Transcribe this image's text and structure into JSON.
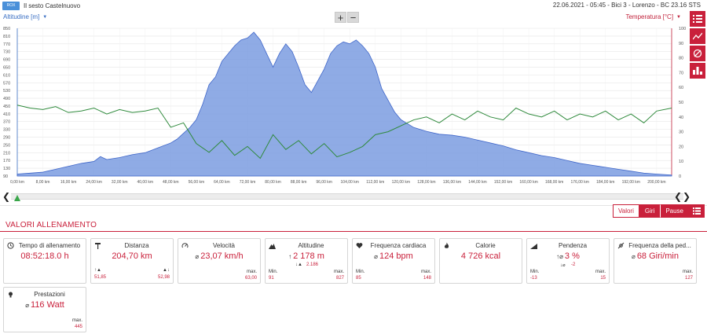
{
  "header": {
    "logo_text": "ROX",
    "title": "Il sesto Castelnuovo",
    "meta": "22.06.2021  -  05:45  -  Bici 3  -  Lorenzo  -  BC 23.16 STS"
  },
  "chart_header": {
    "left_axis": "Altitudine [m]",
    "right_axis": "Temperatura [°C]",
    "zoom_in": "+",
    "zoom_out": "−"
  },
  "side_icons": [
    "list-icon",
    "line-chart-icon",
    "pie-icon",
    "bar-chart-icon"
  ],
  "chart_data": {
    "type": "area",
    "x_unit": "km",
    "x_ticks": [
      "0,00 km",
      "8,00 km",
      "16,00 km",
      "24,00 km",
      "32,00 km",
      "40,00 km",
      "48,00 km",
      "56,00 km",
      "64,00 km",
      "72,00 km",
      "80,00 km",
      "88,00 km",
      "96,00 km",
      "104,00 km",
      "112,00 km",
      "120,00 km",
      "128,00 km",
      "136,00 km",
      "144,00 km",
      "152,00 km",
      "160,00 km",
      "168,00 km",
      "176,00 km",
      "184,00 km",
      "192,00 km",
      "200,00 km"
    ],
    "y_left_ticks": [
      "90",
      "130",
      "170",
      "210",
      "250",
      "290",
      "330",
      "370",
      "410",
      "450",
      "490",
      "530",
      "570",
      "610",
      "650",
      "690",
      "730",
      "770",
      "810",
      "850"
    ],
    "y_right_ticks": [
      "0",
      "10",
      "20",
      "30",
      "40",
      "50",
      "60",
      "70",
      "80",
      "90",
      "100"
    ],
    "xlim": [
      0,
      204.7
    ],
    "ylim_left": [
      90,
      850
    ],
    "ylim_right": [
      0,
      100
    ],
    "series": [
      {
        "name": "Altitudine",
        "color": "#7b9ce0",
        "x": [
          0,
          4,
          8,
          12,
          16,
          20,
          24,
          26,
          28,
          32,
          36,
          40,
          44,
          48,
          50,
          52,
          54,
          56,
          58,
          60,
          62,
          64,
          66,
          68,
          70,
          72,
          74,
          76,
          78,
          80,
          82,
          84,
          86,
          88,
          90,
          92,
          94,
          96,
          98,
          100,
          102,
          104,
          106,
          108,
          110,
          112,
          114,
          116,
          118,
          120,
          124,
          128,
          132,
          136,
          140,
          144,
          148,
          152,
          156,
          160,
          164,
          168,
          172,
          176,
          180,
          184,
          188,
          192,
          196,
          200,
          204.7
        ],
        "y": [
          100,
          105,
          110,
          125,
          140,
          155,
          165,
          190,
          175,
          185,
          200,
          210,
          235,
          260,
          280,
          310,
          340,
          380,
          460,
          560,
          600,
          680,
          720,
          760,
          790,
          800,
          830,
          790,
          720,
          650,
          720,
          770,
          730,
          650,
          560,
          520,
          580,
          640,
          720,
          760,
          780,
          770,
          790,
          760,
          720,
          650,
          540,
          480,
          420,
          380,
          340,
          320,
          305,
          300,
          290,
          275,
          260,
          245,
          225,
          210,
          195,
          185,
          170,
          155,
          145,
          135,
          125,
          115,
          105,
          100,
          95
        ]
      },
      {
        "name": "Temperatura",
        "color": "#2f8a3c",
        "x": [
          0,
          4,
          8,
          12,
          16,
          20,
          24,
          28,
          32,
          36,
          40,
          44,
          48,
          52,
          56,
          60,
          64,
          68,
          72,
          76,
          80,
          84,
          88,
          92,
          96,
          100,
          104,
          108,
          112,
          116,
          120,
          124,
          128,
          132,
          136,
          140,
          144,
          148,
          152,
          156,
          160,
          164,
          168,
          172,
          176,
          180,
          184,
          188,
          192,
          196,
          200,
          204.7
        ],
        "y": [
          48,
          46,
          45,
          47,
          43,
          44,
          46,
          42,
          45,
          43,
          44,
          46,
          33,
          36,
          22,
          16,
          24,
          14,
          20,
          12,
          28,
          18,
          24,
          15,
          22,
          13,
          16,
          20,
          28,
          30,
          34,
          38,
          40,
          36,
          42,
          38,
          44,
          40,
          38,
          46,
          42,
          40,
          44,
          38,
          42,
          40,
          44,
          38,
          42,
          36,
          44,
          46
        ]
      }
    ]
  },
  "tabs": {
    "valori": "Valori",
    "giri": "Giri",
    "pause": "Pause"
  },
  "section_title": "VALORI ALLENAMENTO",
  "cards": [
    {
      "name": "card-tempo",
      "icon": "clock-icon",
      "label": "Tempo di allenamento",
      "value": "08:52:18.0 h",
      "prefix": ""
    },
    {
      "name": "card-distanza",
      "icon": "flag-icon",
      "label": "Distanza",
      "value": "204,70 km",
      "prefix": "",
      "sub_left": "51,85",
      "sub_right": "52,98"
    },
    {
      "name": "card-velocita",
      "icon": "speedometer-icon",
      "label": "Velocità",
      "value": "23,07 km/h",
      "prefix": "⌀",
      "max_label": "max.",
      "max": "63,00"
    },
    {
      "name": "card-altitudine",
      "icon": "mountain-icon",
      "label": "Altitudine",
      "value": "2 178 m",
      "prefix": "↑",
      "sub_down": "2.186",
      "min_label": "Min.",
      "min": "91",
      "max_label": "max.",
      "max": "827"
    },
    {
      "name": "card-frequenza-cardiaca",
      "icon": "heart-icon",
      "label": "Frequenza cardiaca",
      "value": "124 bpm",
      "prefix": "⌀",
      "min_label": "Min.",
      "min": "85",
      "max_label": "max.",
      "max": "148"
    },
    {
      "name": "card-calorie",
      "icon": "flame-icon",
      "label": "Calorie",
      "value": "4 726 kcal",
      "prefix": ""
    },
    {
      "name": "card-pendenza",
      "icon": "slope-icon",
      "label": "Pendenza",
      "value": "3 %",
      "prefix": "↑⌀",
      "sub_down": "-2",
      "min_label": "Min.",
      "min": "-13",
      "max_label": "max.",
      "max": "15"
    },
    {
      "name": "card-cadenza",
      "icon": "pedal-icon",
      "label": "Frequenza della ped...",
      "value": "68 Giri/min",
      "prefix": "⌀",
      "max_label": "max.",
      "max": "127"
    },
    {
      "name": "card-prestazioni",
      "icon": "bulb-icon",
      "label": "Prestazioni",
      "value": "116 Watt",
      "prefix": "⌀",
      "max_label": "max.",
      "max": "445"
    }
  ]
}
